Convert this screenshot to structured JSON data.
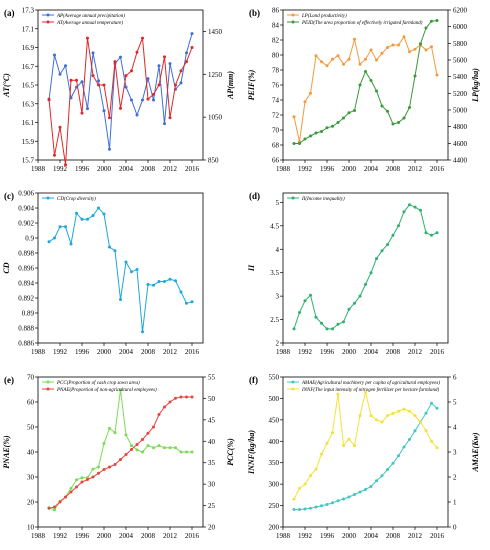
{
  "chart_data": [
    {
      "panel": "(a)",
      "type": "line",
      "ylabel": "AT(°C)",
      "y2label": "AP(mm)",
      "ylim": [
        15.7,
        17.3
      ],
      "yticks": [
        15.7,
        15.9,
        16.1,
        16.3,
        16.5,
        16.7,
        16.9,
        17.1,
        17.3
      ],
      "y2lim": [
        850,
        1550
      ],
      "y2ticks": [
        850,
        1050,
        1250,
        1450
      ],
      "xlim": [
        1988,
        2018
      ],
      "xticks": [
        1988,
        1992,
        1996,
        2000,
        2004,
        2008,
        2012,
        2016
      ],
      "legend_position": "top-left",
      "series": [
        {
          "name": "AP(Average annual precipitation)",
          "axis": "right",
          "color": "#3d6fd6",
          "x": [
            1990,
            1991,
            1992,
            1993,
            1994,
            1995,
            1996,
            1997,
            1998,
            1999,
            2000,
            2001,
            2002,
            2003,
            2004,
            2005,
            2006,
            2007,
            2008,
            2009,
            2010,
            2011,
            2012,
            2013,
            2014,
            2015,
            2016
          ],
          "y": [
            1130,
            1340,
            1250,
            1290,
            1140,
            1190,
            1215,
            1090,
            1350,
            1220,
            1080,
            900,
            1300,
            1330,
            1190,
            1130,
            1060,
            1130,
            1230,
            1130,
            1290,
            1020,
            1300,
            1180,
            1210,
            1350,
            1440
          ]
        },
        {
          "name": "AT(Average annual temperature)",
          "axis": "left",
          "color": "#e02828",
          "x": [
            1990,
            1991,
            1992,
            1993,
            1994,
            1995,
            1996,
            1997,
            1998,
            1999,
            2000,
            2001,
            2002,
            2003,
            2004,
            2005,
            2006,
            2007,
            2008,
            2009,
            2010,
            2011,
            2012,
            2013,
            2014,
            2015,
            2016
          ],
          "y": [
            16.35,
            15.75,
            16.05,
            15.65,
            16.55,
            16.55,
            16.2,
            17.0,
            16.6,
            16.5,
            16.5,
            16.15,
            16.75,
            16.25,
            16.6,
            16.65,
            16.85,
            17.0,
            16.35,
            16.4,
            16.5,
            16.8,
            16.15,
            16.5,
            16.65,
            16.75,
            16.9
          ]
        }
      ]
    },
    {
      "panel": "(b)",
      "type": "line",
      "ylabel": "PEIF(%)",
      "y2label": "LP(kg/ha)",
      "ylim": [
        66,
        86
      ],
      "yticks": [
        66,
        68,
        70,
        72,
        74,
        76,
        78,
        80,
        82,
        84,
        86
      ],
      "y2lim": [
        4400,
        6200
      ],
      "y2ticks": [
        4400,
        4600,
        4800,
        5000,
        5200,
        5400,
        5600,
        5800,
        6000,
        6200
      ],
      "xlim": [
        1988,
        2018
      ],
      "xticks": [
        1988,
        1992,
        1996,
        2000,
        2004,
        2008,
        2012,
        2016
      ],
      "legend_position": "top-left",
      "series": [
        {
          "name": "LP(Land productivity)",
          "axis": "right",
          "color": "#f39a3c",
          "x": [
            1990,
            1991,
            1992,
            1993,
            1994,
            1995,
            1996,
            1997,
            1998,
            1999,
            2000,
            2001,
            2002,
            2003,
            2004,
            2005,
            2006,
            2007,
            2008,
            2009,
            2010,
            2011,
            2012,
            2013,
            2014,
            2015,
            2016
          ],
          "y": [
            4920,
            4620,
            5100,
            5200,
            5650,
            5580,
            5530,
            5610,
            5650,
            5550,
            5610,
            5850,
            5550,
            5610,
            5720,
            5600,
            5680,
            5750,
            5780,
            5780,
            5880,
            5700,
            5730,
            5780,
            5720,
            5760,
            5420
          ]
        },
        {
          "name": "PEID(The area proportion of effectively irrigated farmland)",
          "axis": "left",
          "color": "#3a9a3a",
          "x": [
            1990,
            1991,
            1992,
            1993,
            1994,
            1995,
            1996,
            1997,
            1998,
            1999,
            2000,
            2001,
            2002,
            2003,
            2004,
            2005,
            2006,
            2007,
            2008,
            2009,
            2010,
            2011,
            2012,
            2013,
            2014,
            2015,
            2016
          ],
          "y": [
            68.2,
            68.2,
            68.8,
            69.2,
            69.6,
            69.8,
            70.3,
            70.5,
            71.0,
            71.6,
            72.3,
            72.6,
            76.0,
            77.8,
            76.6,
            75.2,
            73.2,
            72.5,
            70.8,
            71.0,
            71.6,
            73.0,
            77.2,
            81.5,
            83.6,
            84.5,
            84.6
          ]
        }
      ]
    },
    {
      "panel": "(c)",
      "type": "line",
      "ylabel": "CD",
      "ylim": [
        0.886,
        0.906
      ],
      "yticks": [
        0.886,
        0.888,
        0.89,
        0.892,
        0.894,
        0.896,
        0.898,
        0.9,
        0.902,
        0.904,
        0.906
      ],
      "xlim": [
        1988,
        2018
      ],
      "xticks": [
        1988,
        1992,
        1996,
        2000,
        2004,
        2008,
        2012,
        2016
      ],
      "legend_position": "top-left",
      "series": [
        {
          "name": "CD(Crop diversity)",
          "color": "#1ea7dc",
          "x": [
            1990,
            1991,
            1992,
            1993,
            1994,
            1995,
            1996,
            1997,
            1998,
            1999,
            2000,
            2001,
            2002,
            2003,
            2004,
            2005,
            2006,
            2007,
            2008,
            2009,
            2010,
            2011,
            2012,
            2013,
            2014,
            2015,
            2016
          ],
          "y": [
            0.8995,
            0.9,
            0.9015,
            0.9015,
            0.8992,
            0.9033,
            0.9025,
            0.9025,
            0.903,
            0.904,
            0.9032,
            0.8988,
            0.8983,
            0.8918,
            0.8968,
            0.8955,
            0.8958,
            0.8875,
            0.8938,
            0.8937,
            0.8942,
            0.8942,
            0.8945,
            0.8943,
            0.8928,
            0.8913,
            0.8915
          ]
        }
      ]
    },
    {
      "panel": "(d)",
      "type": "line",
      "ylabel": "II",
      "ylim": [
        2,
        5.2
      ],
      "yticks": [
        2,
        2.5,
        3,
        3.5,
        4,
        4.5,
        5
      ],
      "xlim": [
        1988,
        2018
      ],
      "xticks": [
        1988,
        1992,
        1996,
        2000,
        2004,
        2008,
        2012,
        2016
      ],
      "legend_position": "top-left",
      "series": [
        {
          "name": "II(Income inequality)",
          "color": "#2fb06d",
          "x": [
            1990,
            1991,
            1992,
            1993,
            1994,
            1995,
            1996,
            1997,
            1998,
            1999,
            2000,
            2001,
            2002,
            2003,
            2004,
            2005,
            2006,
            2007,
            2008,
            2009,
            2010,
            2011,
            2012,
            2013,
            2014,
            2015,
            2016
          ],
          "y": [
            2.3,
            2.65,
            2.9,
            3.02,
            2.55,
            2.42,
            2.3,
            2.3,
            2.4,
            2.45,
            2.72,
            2.85,
            3.0,
            3.25,
            3.5,
            3.8,
            3.97,
            4.1,
            4.3,
            4.5,
            4.8,
            4.95,
            4.9,
            4.83,
            4.35,
            4.3,
            4.35
          ]
        }
      ]
    },
    {
      "panel": "(e)",
      "type": "line",
      "ylabel": "PNAE(%)",
      "y2label": "PCC(%)",
      "ylim": [
        10,
        70
      ],
      "yticks": [
        10,
        20,
        30,
        40,
        50,
        60,
        70
      ],
      "y2lim": [
        20,
        55
      ],
      "y2ticks": [
        20,
        25,
        30,
        35,
        40,
        45,
        50,
        55
      ],
      "xlim": [
        1988,
        2018
      ],
      "xticks": [
        1988,
        1992,
        1996,
        2000,
        2004,
        2008,
        2012,
        2016
      ],
      "legend_position": "top-left",
      "series": [
        {
          "name": "PCC(Proportion of cash crop sown area)",
          "axis": "right",
          "color": "#7ed957",
          "x": [
            1990,
            1991,
            1992,
            1993,
            1994,
            1995,
            1996,
            1997,
            1998,
            1999,
            2000,
            2001,
            2002,
            2003,
            2004,
            2005,
            2006,
            2007,
            2008,
            2009,
            2010,
            2011,
            2012,
            2013,
            2014,
            2015,
            2016
          ],
          "y": [
            24.5,
            24.0,
            26.0,
            27.0,
            29.0,
            31.0,
            31.5,
            31.5,
            33.5,
            34.0,
            39.5,
            43.0,
            42.0,
            52.0,
            41.5,
            39.0,
            38.0,
            37.5,
            39.0,
            38.5,
            39.0,
            38.5,
            38.5,
            38.5,
            37.5,
            37.5,
            37.5
          ]
        },
        {
          "name": "PNAE(Proportion of non-agricultural employees)",
          "axis": "left",
          "color": "#e8453c",
          "x": [
            1990,
            1991,
            1992,
            1993,
            1994,
            1995,
            1996,
            1997,
            1998,
            1999,
            2000,
            2001,
            2002,
            2003,
            2004,
            2005,
            2006,
            2007,
            2008,
            2009,
            2010,
            2011,
            2012,
            2013,
            2014,
            2015,
            2016
          ],
          "y": [
            17.5,
            18.0,
            20.0,
            22.0,
            24.0,
            26.0,
            28.0,
            29.0,
            30.0,
            31.5,
            33.0,
            34.0,
            35.0,
            37.0,
            39.0,
            41.0,
            43.0,
            45.0,
            47.5,
            50.0,
            55.0,
            58.0,
            60.0,
            61.5,
            62.0,
            62.0,
            62.0
          ]
        }
      ]
    },
    {
      "panel": "(f)",
      "type": "line",
      "ylabel": "INNF(kg/ha)",
      "y2label": "AMAE(Kw)",
      "ylim": [
        200,
        550
      ],
      "yticks": [
        200,
        250,
        300,
        350,
        400,
        450,
        500,
        550
      ],
      "y2lim": [
        0,
        6
      ],
      "y2ticks": [
        0,
        1,
        2,
        3,
        4,
        5,
        6
      ],
      "xlim": [
        1988,
        2018
      ],
      "xticks": [
        1988,
        1992,
        1996,
        2000,
        2004,
        2008,
        2012,
        2016
      ],
      "legend_position": "top-left",
      "series": [
        {
          "name": "AMAE(Agricultural machinery per capita of agricultural employees)",
          "axis": "right",
          "color": "#3fc8c0",
          "x": [
            1990,
            1991,
            1992,
            1993,
            1994,
            1995,
            1996,
            1997,
            1998,
            1999,
            2000,
            2001,
            2002,
            2003,
            2004,
            2005,
            2006,
            2007,
            2008,
            2009,
            2010,
            2011,
            2012,
            2013,
            2014,
            2015,
            2016
          ],
          "y": [
            0.7,
            0.7,
            0.72,
            0.75,
            0.8,
            0.85,
            0.9,
            0.97,
            1.05,
            1.12,
            1.2,
            1.3,
            1.4,
            1.5,
            1.62,
            1.85,
            2.05,
            2.3,
            2.55,
            2.85,
            3.2,
            3.5,
            3.85,
            4.2,
            4.55,
            4.95,
            4.75
          ]
        },
        {
          "name": "INNF(The input intensity of nitrogen fertilizer per hectare farmland)",
          "axis": "left",
          "color": "#f2e23a",
          "x": [
            1990,
            1991,
            1992,
            1993,
            1994,
            1995,
            1996,
            1997,
            1998,
            1999,
            2000,
            2001,
            2002,
            2003,
            2004,
            2005,
            2006,
            2007,
            2008,
            2009,
            2010,
            2011,
            2012,
            2013,
            2014,
            2015,
            2016
          ],
          "y": [
            265,
            290,
            300,
            320,
            335,
            370,
            395,
            420,
            510,
            390,
            405,
            390,
            460,
            515,
            460,
            450,
            445,
            460,
            465,
            470,
            475,
            470,
            460,
            445,
            425,
            400,
            385
          ]
        }
      ]
    }
  ]
}
